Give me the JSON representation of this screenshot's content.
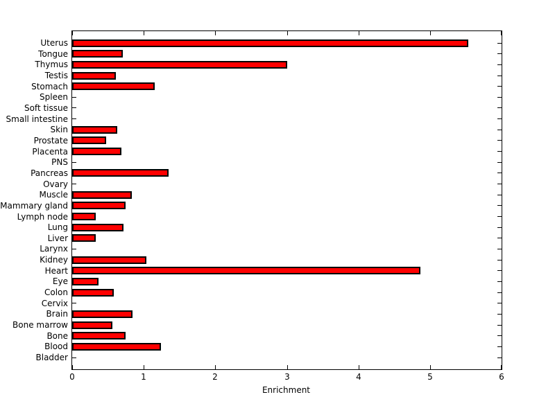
{
  "figure": {
    "background": "#ffffff",
    "axis_color": "#000000",
    "text_color": "#000000"
  },
  "chart_data": {
    "type": "bar",
    "orientation": "horizontal",
    "title": "",
    "xlabel": "Enrichment",
    "ylabel": "",
    "categories": [
      "Uterus",
      "Tongue",
      "Thymus",
      "Testis",
      "Stomach",
      "Spleen",
      "Soft tissue",
      "Small intestine",
      "Skin",
      "Prostate",
      "Placenta",
      "PNS",
      "Pancreas",
      "Ovary",
      "Muscle",
      "Mammary gland",
      "Lymph node",
      "Lung",
      "Liver",
      "Larynx",
      "Kidney",
      "Heart",
      "Eye",
      "Colon",
      "Cervix",
      "Brain",
      "Bone marrow",
      "Bone",
      "Blood",
      "Bladder"
    ],
    "values": [
      5.53,
      0.71,
      3.0,
      0.61,
      1.15,
      0,
      0,
      0,
      0.63,
      0.47,
      0.69,
      0,
      1.35,
      0,
      0.83,
      0.75,
      0.33,
      0.72,
      0.33,
      0,
      1.04,
      4.87,
      0.37,
      0.58,
      0,
      0.84,
      0.56,
      0.75,
      1.24,
      0
    ],
    "xlim": [
      0,
      6
    ],
    "xticks": [
      0,
      1,
      2,
      3,
      4,
      5,
      6
    ],
    "grid": false,
    "legend": null,
    "bar_color": "#ff0000",
    "bar_edge_color": "#000000",
    "tick_direction": "in",
    "box": true
  }
}
